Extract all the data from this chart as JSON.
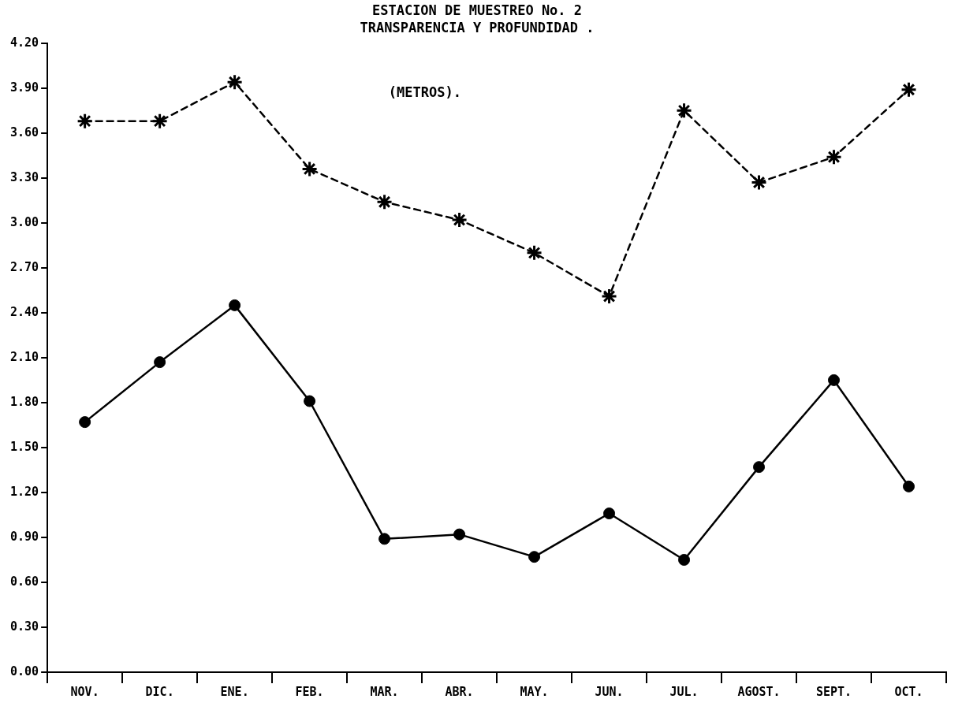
{
  "chart_data": {
    "type": "line",
    "title": "ESTACION DE MUESTREO No. 2",
    "subtitle": "TRANSPARENCIA Y PROFUNDIDAD .",
    "annotations": [
      "(METROS)."
    ],
    "categories": [
      "NOV.",
      "DIC.",
      "ENE.",
      "FEB.",
      "MAR.",
      "ABR.",
      "MAY.",
      "JUN.",
      "JUL.",
      "AGOST.",
      "SEPT.",
      "OCT."
    ],
    "series": [
      {
        "color": "#000000",
        "marker": "circle",
        "line_style": "solid",
        "values": [
          1.67,
          2.07,
          2.45,
          1.81,
          0.89,
          0.92,
          0.77,
          1.06,
          0.75,
          1.37,
          1.95,
          1.24
        ]
      },
      {
        "color": "#000000",
        "marker": "cross",
        "line_style": "dashed",
        "values": [
          3.68,
          3.68,
          3.94,
          3.36,
          3.14,
          3.02,
          2.8,
          2.51,
          3.75,
          3.27,
          3.44,
          3.89
        ]
      }
    ],
    "ylim": [
      0,
      4.2
    ],
    "yticks": [
      {
        "value": 0,
        "label": "0.00"
      },
      {
        "value": 0.3,
        "label": "0.30"
      },
      {
        "value": 0.6,
        "label": "0.60"
      },
      {
        "value": 0.9,
        "label": "0.90"
      },
      {
        "value": 1.2,
        "label": "1.20"
      },
      {
        "value": 1.5,
        "label": "1.50"
      },
      {
        "value": 1.8,
        "label": "1.80"
      },
      {
        "value": 2.1,
        "label": "2.10"
      },
      {
        "value": 2.4,
        "label": "2.40"
      },
      {
        "value": 2.7,
        "label": "2.70"
      },
      {
        "value": 3.0,
        "label": "3.00"
      },
      {
        "value": 3.3,
        "label": "3.30"
      },
      {
        "value": 3.6,
        "label": "3.60"
      },
      {
        "value": 3.9,
        "label": "3.90"
      },
      {
        "value": 4.2,
        "label": "4.20"
      }
    ],
    "grid": false,
    "legend": false
  }
}
